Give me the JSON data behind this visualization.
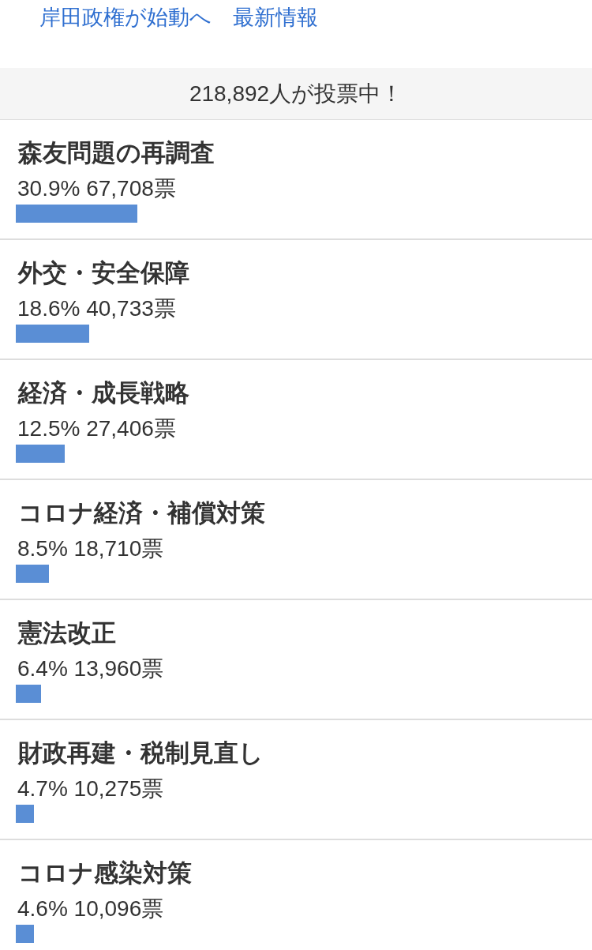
{
  "chart_data": {
    "type": "bar",
    "orientation": "horizontal",
    "title": "218,892人が投票中！",
    "annotations": [
      "岸田政権が始動へ　最新情報"
    ],
    "categories": [
      "森友問題の再調査",
      "外交・安全保障",
      "経済・成長戦略",
      "コロナ経済・補償対策",
      "憲法改正",
      "財政再建・税制見直し",
      "コロナ感染対策"
    ],
    "values": [
      30.9,
      18.6,
      12.5,
      8.5,
      6.4,
      4.7,
      4.6
    ],
    "value_labels": [
      "30.9% 67,708票",
      "18.6% 40,733票",
      "12.5% 27,406票",
      "8.5% 18,710票",
      "6.4% 13,960票",
      "4.7% 10,275票",
      "4.6% 10,096票"
    ],
    "color": "#5a8ed5",
    "tick_labels": "y"
  }
}
